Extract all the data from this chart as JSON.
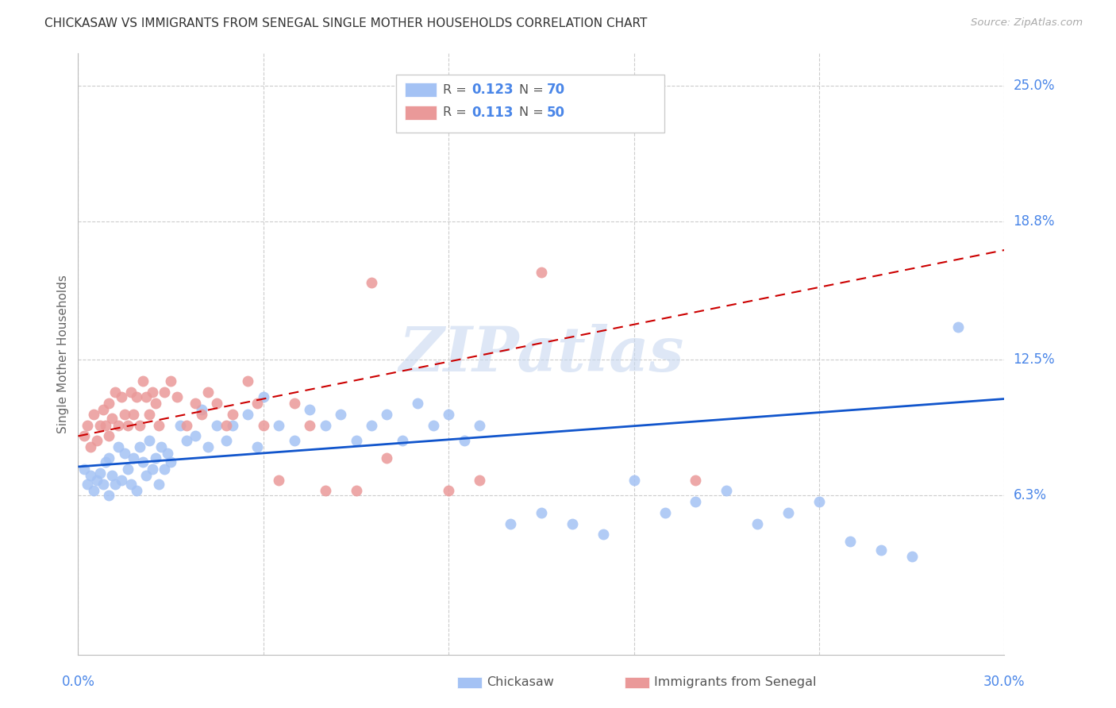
{
  "title": "CHICKASAW VS IMMIGRANTS FROM SENEGAL SINGLE MOTHER HOUSEHOLDS CORRELATION CHART",
  "source": "Source: ZipAtlas.com",
  "ylabel": "Single Mother Households",
  "xlim": [
    0.0,
    0.3
  ],
  "ylim": [
    -0.01,
    0.265
  ],
  "ytick_labels": [
    "6.3%",
    "12.5%",
    "18.8%",
    "25.0%"
  ],
  "ytick_values": [
    0.063,
    0.125,
    0.188,
    0.25
  ],
  "xtick_labels": [
    "0.0%",
    "30.0%"
  ],
  "xtick_positions": [
    0.0,
    0.3
  ],
  "legend_labels": [
    "Chickasaw",
    "Immigrants from Senegal"
  ],
  "series1_R": "0.123",
  "series1_N": "70",
  "series2_R": "0.113",
  "series2_N": "50",
  "series1_color": "#a4c2f4",
  "series2_color": "#ea9999",
  "series1_line_color": "#1155cc",
  "series2_line_color": "#cc0000",
  "watermark": "ZIPatlas",
  "blue_label_color": "#4a86e8",
  "grid_color": "#cccccc",
  "series1_x": [
    0.002,
    0.003,
    0.004,
    0.005,
    0.006,
    0.007,
    0.008,
    0.009,
    0.01,
    0.01,
    0.011,
    0.012,
    0.013,
    0.014,
    0.015,
    0.016,
    0.017,
    0.018,
    0.019,
    0.02,
    0.021,
    0.022,
    0.023,
    0.024,
    0.025,
    0.026,
    0.027,
    0.028,
    0.029,
    0.03,
    0.033,
    0.035,
    0.038,
    0.04,
    0.042,
    0.045,
    0.048,
    0.05,
    0.055,
    0.058,
    0.06,
    0.065,
    0.07,
    0.075,
    0.08,
    0.085,
    0.09,
    0.095,
    0.1,
    0.105,
    0.11,
    0.115,
    0.12,
    0.125,
    0.13,
    0.14,
    0.15,
    0.16,
    0.17,
    0.18,
    0.19,
    0.2,
    0.21,
    0.22,
    0.23,
    0.24,
    0.25,
    0.26,
    0.27,
    0.285
  ],
  "series1_y": [
    0.075,
    0.068,
    0.072,
    0.065,
    0.07,
    0.073,
    0.068,
    0.078,
    0.063,
    0.08,
    0.072,
    0.068,
    0.085,
    0.07,
    0.082,
    0.075,
    0.068,
    0.08,
    0.065,
    0.085,
    0.078,
    0.072,
    0.088,
    0.075,
    0.08,
    0.068,
    0.085,
    0.075,
    0.082,
    0.078,
    0.095,
    0.088,
    0.09,
    0.102,
    0.085,
    0.095,
    0.088,
    0.095,
    0.1,
    0.085,
    0.108,
    0.095,
    0.088,
    0.102,
    0.095,
    0.1,
    0.088,
    0.095,
    0.1,
    0.088,
    0.105,
    0.095,
    0.1,
    0.088,
    0.095,
    0.05,
    0.055,
    0.05,
    0.045,
    0.07,
    0.055,
    0.06,
    0.065,
    0.05,
    0.055,
    0.06,
    0.042,
    0.038,
    0.035,
    0.14
  ],
  "series2_x": [
    0.002,
    0.003,
    0.004,
    0.005,
    0.006,
    0.007,
    0.008,
    0.009,
    0.01,
    0.01,
    0.011,
    0.012,
    0.013,
    0.014,
    0.015,
    0.016,
    0.017,
    0.018,
    0.019,
    0.02,
    0.021,
    0.022,
    0.023,
    0.024,
    0.025,
    0.026,
    0.028,
    0.03,
    0.032,
    0.035,
    0.038,
    0.04,
    0.042,
    0.045,
    0.048,
    0.05,
    0.055,
    0.058,
    0.06,
    0.065,
    0.07,
    0.075,
    0.08,
    0.09,
    0.095,
    0.1,
    0.12,
    0.13,
    0.15,
    0.2
  ],
  "series2_y": [
    0.09,
    0.095,
    0.085,
    0.1,
    0.088,
    0.095,
    0.102,
    0.095,
    0.105,
    0.09,
    0.098,
    0.11,
    0.095,
    0.108,
    0.1,
    0.095,
    0.11,
    0.1,
    0.108,
    0.095,
    0.115,
    0.108,
    0.1,
    0.11,
    0.105,
    0.095,
    0.11,
    0.115,
    0.108,
    0.095,
    0.105,
    0.1,
    0.11,
    0.105,
    0.095,
    0.1,
    0.115,
    0.105,
    0.095,
    0.07,
    0.105,
    0.095,
    0.065,
    0.065,
    0.16,
    0.08,
    0.065,
    0.07,
    0.165,
    0.07
  ],
  "line1_x0": 0.0,
  "line1_x1": 0.3,
  "line1_y0": 0.076,
  "line1_y1": 0.107,
  "line2_x0": 0.0,
  "line2_x1": 0.3,
  "line2_y0": 0.09,
  "line2_y1": 0.175
}
